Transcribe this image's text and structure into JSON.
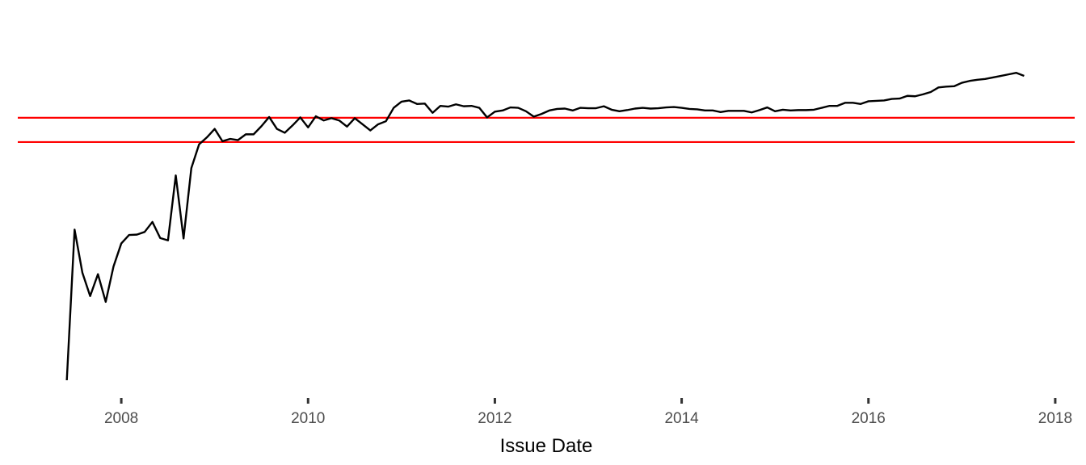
{
  "chart_data": {
    "type": "line",
    "title": "",
    "xlabel": "Issue Date",
    "ylabel": "",
    "grid": false,
    "legend": "none",
    "x_ticks": [
      2008,
      2010,
      2012,
      2014,
      2016,
      2018
    ],
    "x_tick_labels": [
      "2008",
      "2010",
      "2012",
      "2014",
      "2016",
      "2018"
    ],
    "xlim": [
      2006.8917,
      2018.2083
    ],
    "ylim": [
      0,
      1
    ],
    "y_scale_note": "y axis has no printed labels; values normalized to 0-1 of plot range",
    "series": [
      {
        "color": "#000000",
        "x": [
          2007.4167,
          2007.5,
          2007.5833,
          2007.6667,
          2007.75,
          2007.8333,
          2007.9167,
          2008.0,
          2008.0833,
          2008.1667,
          2008.25,
          2008.3333,
          2008.4167,
          2008.5,
          2008.5833,
          2008.6667,
          2008.75,
          2008.8333,
          2008.9167,
          2009.0,
          2009.0833,
          2009.1667,
          2009.25,
          2009.3333,
          2009.4167,
          2009.5,
          2009.5833,
          2009.6667,
          2009.75,
          2009.8333,
          2009.9167,
          2010.0,
          2010.0833,
          2010.1667,
          2010.25,
          2010.3333,
          2010.4167,
          2010.5,
          2010.5833,
          2010.6667,
          2010.75,
          2010.8333,
          2010.9167,
          2011.0,
          2011.0833,
          2011.1667,
          2011.25,
          2011.3333,
          2011.4167,
          2011.5,
          2011.5833,
          2011.6667,
          2011.75,
          2011.8333,
          2011.9167,
          2012.0,
          2012.0833,
          2012.1667,
          2012.25,
          2012.3333,
          2012.4167,
          2012.5,
          2012.5833,
          2012.6667,
          2012.75,
          2012.8333,
          2012.9167,
          2013.0,
          2013.0833,
          2013.1667,
          2013.25,
          2013.3333,
          2013.4167,
          2013.5,
          2013.5833,
          2013.6667,
          2013.75,
          2013.8333,
          2013.9167,
          2014.0,
          2014.0833,
          2014.1667,
          2014.25,
          2014.3333,
          2014.4167,
          2014.5,
          2014.5833,
          2014.6667,
          2014.75,
          2014.8333,
          2014.9167,
          2015.0,
          2015.0833,
          2015.1667,
          2015.25,
          2015.3333,
          2015.4167,
          2015.5,
          2015.5833,
          2015.6667,
          2015.75,
          2015.8333,
          2015.9167,
          2016.0,
          2016.0833,
          2016.1667,
          2016.25,
          2016.3333,
          2016.4167,
          2016.5,
          2016.5833,
          2016.6667,
          2016.75,
          2016.8333,
          2016.9167,
          2017.0,
          2017.0833,
          2017.1667,
          2017.25,
          2017.3333,
          2017.4167,
          2017.5,
          2017.5833,
          2017.6667
        ],
        "y": [
          0.0,
          0.4278,
          0.3057,
          0.2391,
          0.3014,
          0.2227,
          0.3231,
          0.3886,
          0.4126,
          0.4137,
          0.4213,
          0.4497,
          0.4039,
          0.3974,
          0.5819,
          0.4028,
          0.6026,
          0.6703,
          0.69,
          0.714,
          0.679,
          0.6856,
          0.6823,
          0.6987,
          0.6987,
          0.7216,
          0.7478,
          0.714,
          0.7031,
          0.7238,
          0.7467,
          0.7183,
          0.75,
          0.738,
          0.7445,
          0.738,
          0.7205,
          0.7445,
          0.7271,
          0.7096,
          0.7271,
          0.7358,
          0.774,
          0.7914,
          0.7948,
          0.7849,
          0.786,
          0.7598,
          0.7795,
          0.7773,
          0.7838,
          0.7784,
          0.7795,
          0.774,
          0.7467,
          0.7631,
          0.7664,
          0.7751,
          0.774,
          0.7642,
          0.7489,
          0.7566,
          0.7664,
          0.7707,
          0.7718,
          0.7664,
          0.774,
          0.7729,
          0.7729,
          0.7784,
          0.7686,
          0.7642,
          0.7675,
          0.7718,
          0.774,
          0.7718,
          0.7729,
          0.7751,
          0.7762,
          0.774,
          0.7707,
          0.7697,
          0.7664,
          0.7664,
          0.762,
          0.7653,
          0.7653,
          0.7653,
          0.7609,
          0.7675,
          0.7751,
          0.7642,
          0.7686,
          0.7664,
          0.7675,
          0.7675,
          0.7686,
          0.774,
          0.7795,
          0.7795,
          0.7882,
          0.7882,
          0.7849,
          0.7926,
          0.7937,
          0.7948,
          0.7991,
          0.8002,
          0.8079,
          0.8068,
          0.8122,
          0.8188,
          0.8319,
          0.8341,
          0.8352,
          0.845,
          0.8504,
          0.8537,
          0.8559,
          0.8603,
          0.8646,
          0.869,
          0.8734,
          0.8646
        ]
      }
    ],
    "hlines": [
      {
        "color": "#ff0000",
        "y": 0.7457
      },
      {
        "color": "#ff0000",
        "y": 0.6768
      }
    ]
  }
}
